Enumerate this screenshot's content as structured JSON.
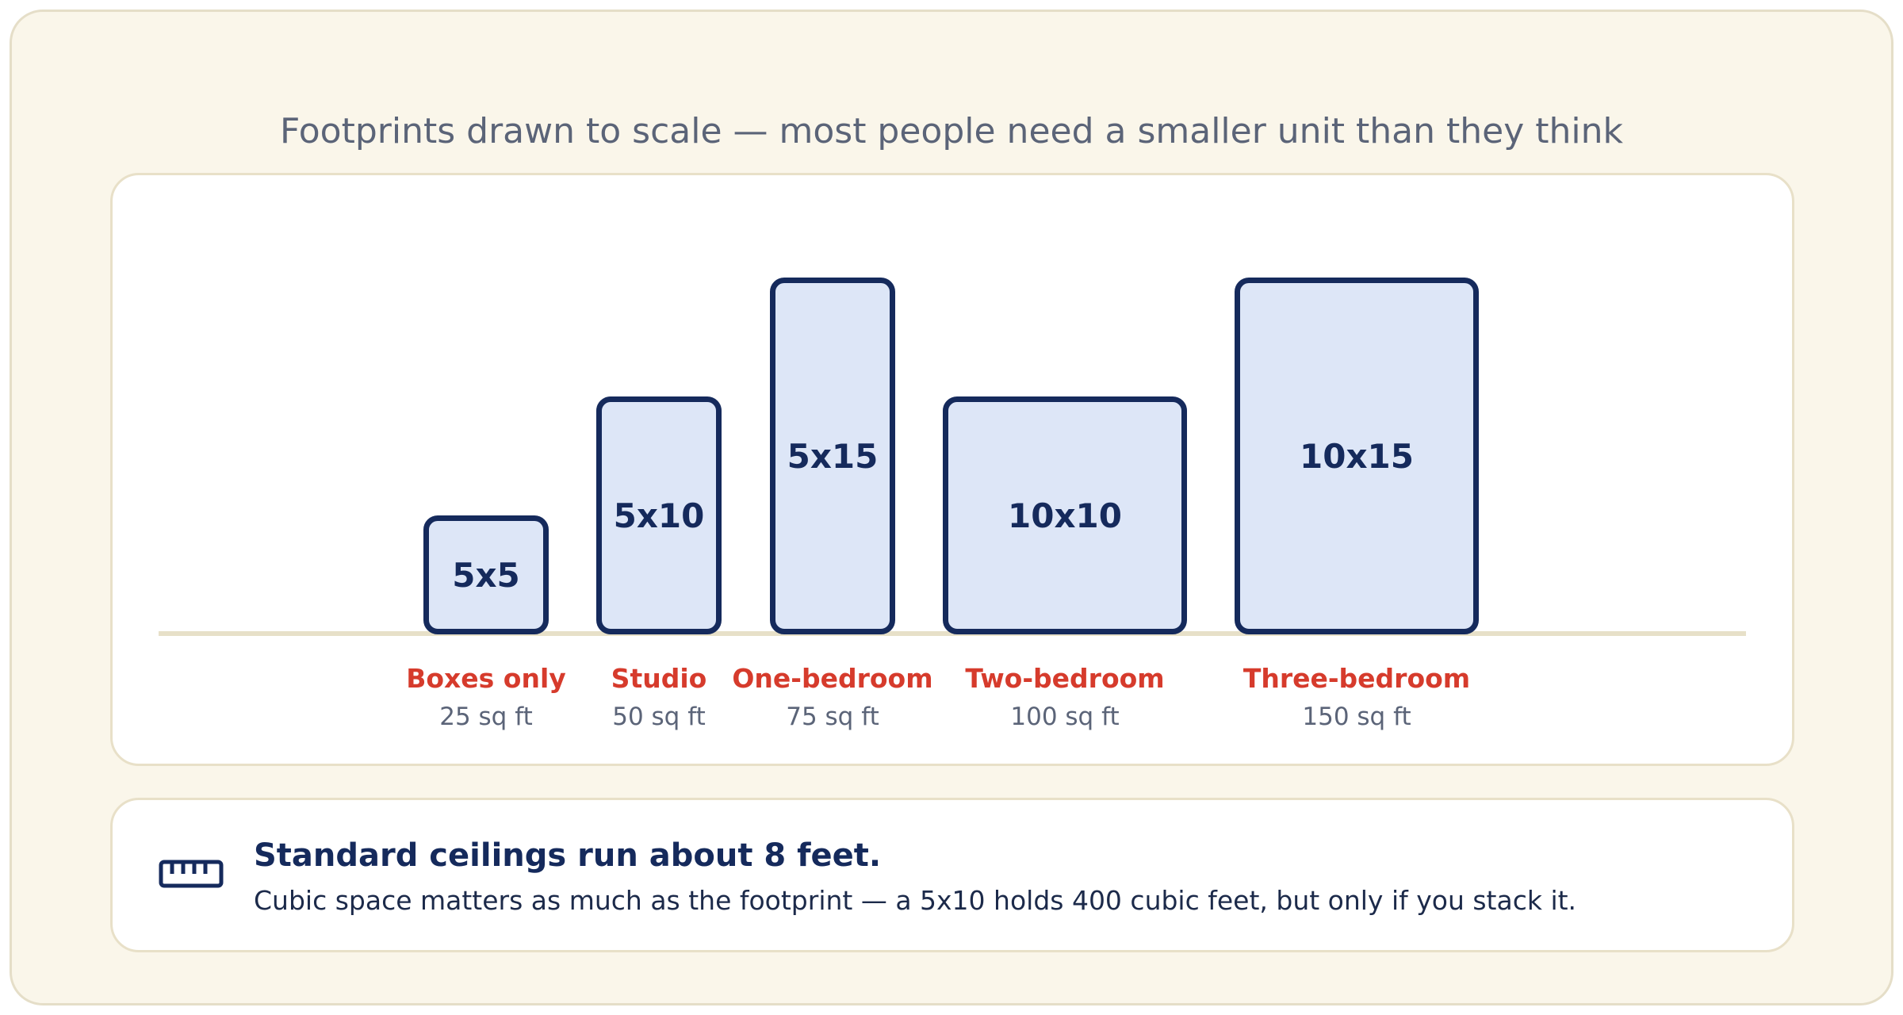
{
  "headline": "Footprints drawn to scale — most people need a smaller unit than they think",
  "units": [
    {
      "dims": "5x5",
      "name": "Boxes only",
      "area": "25 sq ft",
      "width_ft": 5,
      "depth_ft": 5
    },
    {
      "dims": "5x10",
      "name": "Studio",
      "area": "50 sq ft",
      "width_ft": 5,
      "depth_ft": 10
    },
    {
      "dims": "5x15",
      "name": "One-bedroom",
      "area": "75 sq ft",
      "width_ft": 5,
      "depth_ft": 15
    },
    {
      "dims": "10x10",
      "name": "Two-bedroom",
      "area": "100 sq ft",
      "width_ft": 10,
      "depth_ft": 10
    },
    {
      "dims": "10x15",
      "name": "Three-bedroom",
      "area": "150 sq ft",
      "width_ft": 10,
      "depth_ft": 15
    }
  ],
  "note": {
    "icon": "ruler-icon",
    "title": "Standard ceilings run about 8 feet.",
    "body": "Cubic space matters as much as the footprint — a 5x10 holds 400 cubic feet, but only if you stack it."
  },
  "colors": {
    "background": "#faf6ea",
    "box_fill": "#dde6f7",
    "box_stroke": "#152a5c",
    "label_accent": "#d63b2c",
    "muted_text": "#5b6478"
  }
}
